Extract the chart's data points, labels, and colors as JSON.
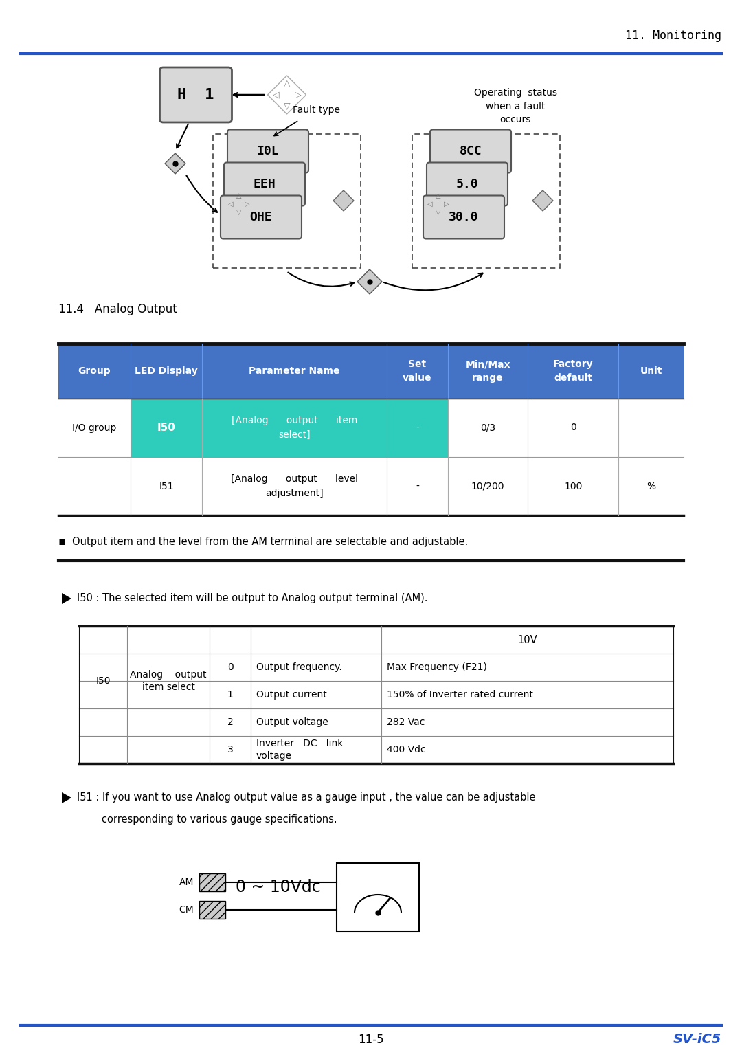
{
  "page_title": "11. Monitoring",
  "section_title": "11.4   Analog Output",
  "footer_left": "11-5",
  "footer_right": "SV-iC5",
  "header_line_color": "#2255cc",
  "table_header_bg": "#4472c4",
  "table_row1_bg": "#2eccba",
  "bullet_text": "Output item and the level from the AM terminal are selectable and adjustable.",
  "arrow_text_i50": "I50 : The selected item will be output to Analog output terminal (AM).",
  "i51_text_line1": "I51 : If you want to use Analog output value as a gauge input , the value can be adjustable",
  "i51_text_line2": "corresponding to various gauge specifications.",
  "sub_table_10v": "10V",
  "diagram_label": "0 ~ 10Vdc",
  "bg_color": "#ffffff",
  "text_color": "#000000",
  "blue_color": "#2255cc",
  "cyan_color": "#2eccba"
}
